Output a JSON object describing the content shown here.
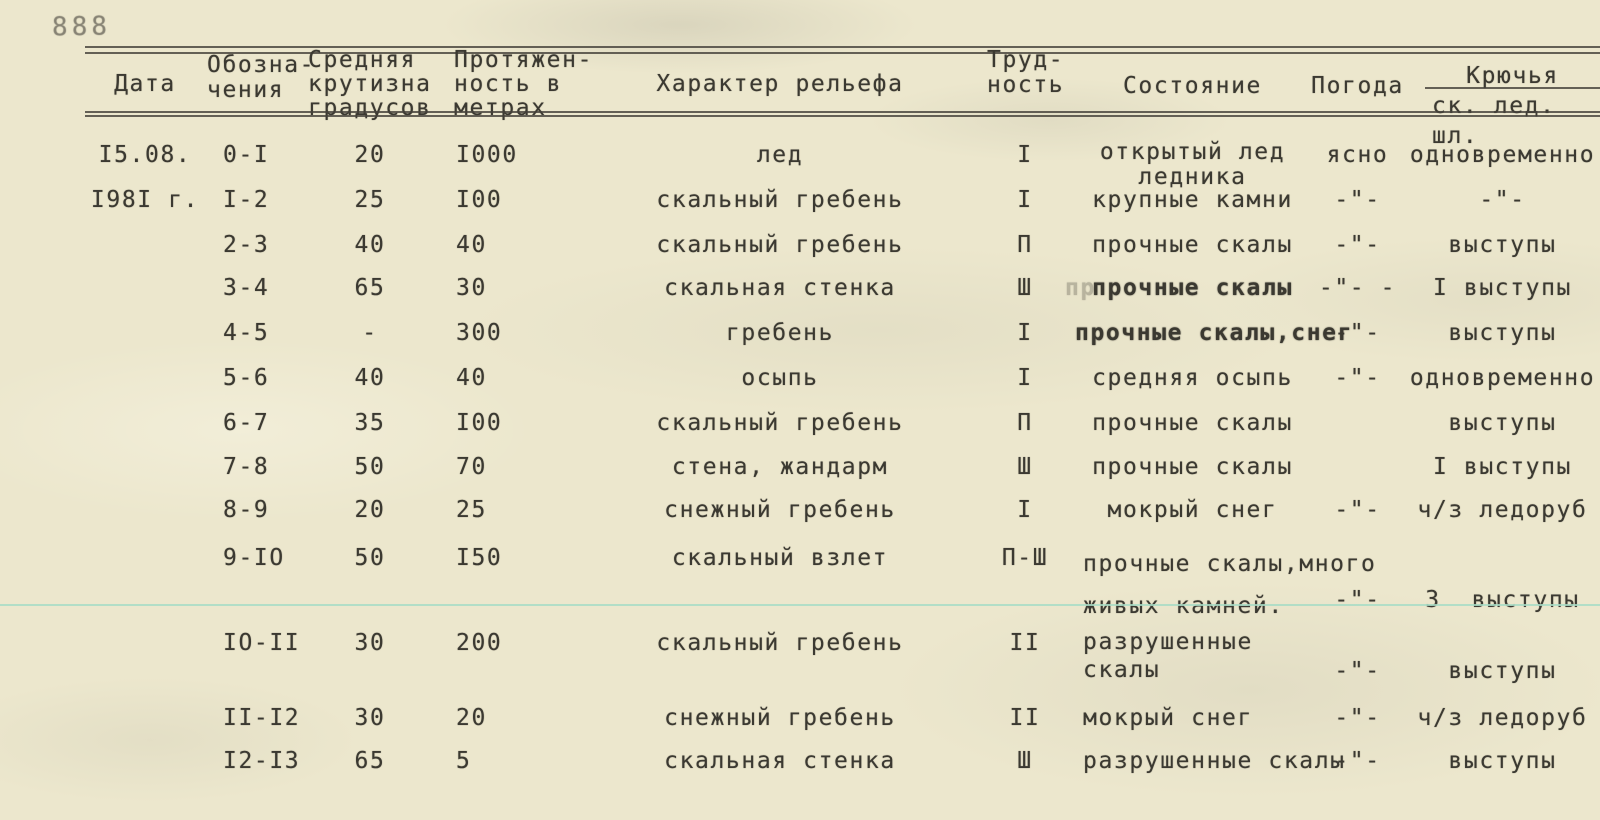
{
  "page": {
    "stamp": "888"
  },
  "colors": {
    "paper": "#ece7cd",
    "ink": "#3b3931",
    "teal_line": "#a8dcc5",
    "rule": "#45423a"
  },
  "table": {
    "headers": {
      "date": "Дата",
      "mark": "Обозна-\nчения",
      "steep": "Средняя\nкрутизна\nградусов",
      "len": "Протяжен-\nность в\nметрах",
      "relief": "Характер рельефа",
      "diff": "Труд-\nность",
      "cond": "Состояние",
      "weather": "Погода",
      "pitons": "Крючья",
      "pitons_sub": "ск. лед. шл."
    },
    "rows": [
      {
        "date": "I5.08.",
        "mark": "0-I",
        "steep": "20",
        "len": "I000",
        "relief": "лед",
        "diff": "I",
        "cond": [
          "открытый лед",
          "ледника"
        ],
        "weather": "ясно",
        "pitons": "одновременно"
      },
      {
        "date": "I98I г.",
        "mark": "I-2",
        "steep": "25",
        "len": "I00",
        "relief": "скальный гребень",
        "diff": "I",
        "cond": [
          "крупные камни"
        ],
        "weather": "-\"-",
        "pitons": "-\"-"
      },
      {
        "date": "",
        "mark": "2-3",
        "steep": "40",
        "len": "40",
        "relief": "скальный гребень",
        "diff": "П",
        "cond": [
          "прочные скалы"
        ],
        "weather": "-\"-",
        "pitons": "выступы"
      },
      {
        "date": "",
        "mark": "3-4",
        "steep": "65",
        "len": "30",
        "relief": "скальная стенка",
        "diff": "Ш",
        "cond": [
          "прочные скалы"
        ],
        "ghost": "пр",
        "weather": "-\"- -",
        "pitons": "I выступы"
      },
      {
        "date": "",
        "mark": "4-5",
        "steep": "-",
        "len": "300",
        "relief": "гребень",
        "diff": "I",
        "cond": [
          "прочные скалы,снег"
        ],
        "weather": "-\"-",
        "pitons": "выступы"
      },
      {
        "date": "",
        "mark": "5-6",
        "steep": "40",
        "len": "40",
        "relief": "осыпь",
        "diff": "I",
        "cond": [
          "средняя осыпь"
        ],
        "weather": "-\"-",
        "pitons": "одновременно"
      },
      {
        "date": "",
        "mark": "6-7",
        "steep": "35",
        "len": "I00",
        "relief": "скальный гребень",
        "diff": "П",
        "cond": [
          "прочные скалы"
        ],
        "weather": "",
        "pitons": "выступы"
      },
      {
        "date": "",
        "mark": "7-8",
        "steep": "50",
        "len": "70",
        "relief": "стена, жандарм",
        "diff": "Ш",
        "cond": [
          "прочные скалы"
        ],
        "weather": "",
        "pitons": "I выступы"
      },
      {
        "date": "",
        "mark": "8-9",
        "steep": "20",
        "len": "25",
        "relief": "снежный гребень",
        "diff": "I",
        "cond": [
          "мокрый снег"
        ],
        "weather": "-\"-",
        "pitons": "ч/з ледоруб"
      },
      {
        "date": "",
        "mark": "9-IO",
        "steep": "50",
        "len": "I50",
        "relief": "скальный взлет",
        "diff": "П-Ш",
        "cond": [
          "прочные скалы,много",
          "живых камней."
        ],
        "weather": "-\"-",
        "pitons": "3  выступы"
      },
      {
        "date": "",
        "mark": "IO-II",
        "steep": "30",
        "len": "200",
        "relief": "скальный гребень",
        "diff": "II",
        "cond": [
          "разрушенные",
          "скалы"
        ],
        "weather": "-\"-",
        "pitons": "выступы"
      },
      {
        "date": "",
        "mark": "II-I2",
        "steep": "30",
        "len": "20",
        "relief": "снежный гребень",
        "diff": "II",
        "cond": [
          "мокрый снег"
        ],
        "weather": "-\"-",
        "pitons": "ч/з ледоруб"
      },
      {
        "date": "",
        "mark": "I2-I3",
        "steep": "65",
        "len": "5",
        "relief": "скальная стенка",
        "diff": "Ш",
        "cond": [
          "разрушенные скалы"
        ],
        "weather": "-\"-",
        "pitons": "выступы"
      }
    ]
  }
}
